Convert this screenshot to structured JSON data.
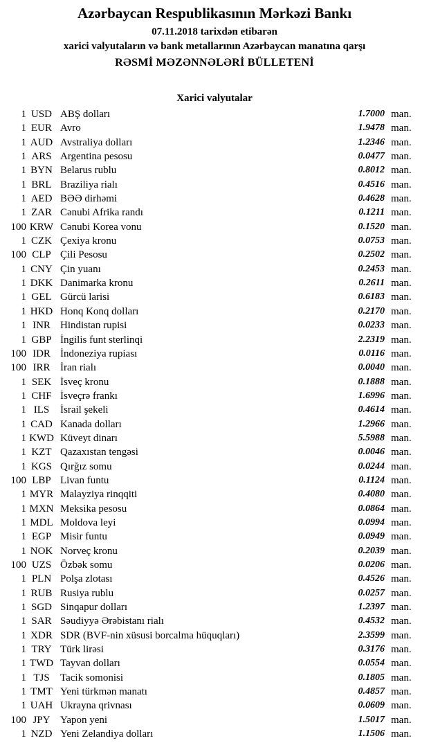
{
  "colors": {
    "text": "#000000",
    "background": "#ffffff"
  },
  "header": {
    "bank_name": "Azərbaycan Respublikasının Mərkəzi Bankı",
    "date_line": "07.11.2018 tarixdən etibarən",
    "subject_line": "xarici valyutaların və bank metallarının Azərbaycan manatına qarşı",
    "bulletin_title": "RƏSMİ MƏZƏNNƏLƏRİ BÜLLETENİ"
  },
  "section": {
    "title": "Xarici valyutalar"
  },
  "table": {
    "unit_label": "man.",
    "rows": [
      {
        "quantity": "1",
        "code": "USD",
        "name": "ABŞ dolları",
        "rate": "1.7000"
      },
      {
        "quantity": "1",
        "code": "EUR",
        "name": "Avro",
        "rate": "1.9478"
      },
      {
        "quantity": "1",
        "code": "AUD",
        "name": "Avstraliya dolları",
        "rate": "1.2346"
      },
      {
        "quantity": "1",
        "code": "ARS",
        "name": "Argentina pesosu",
        "rate": "0.0477"
      },
      {
        "quantity": "1",
        "code": "BYN",
        "name": "Belarus rublu",
        "rate": "0.8012"
      },
      {
        "quantity": "1",
        "code": "BRL",
        "name": "Braziliya rialı",
        "rate": "0.4516"
      },
      {
        "quantity": "1",
        "code": "AED",
        "name": "BƏƏ dirhəmi",
        "rate": "0.4628"
      },
      {
        "quantity": "1",
        "code": "ZAR",
        "name": "Cənubi Afrika randı",
        "rate": "0.1211"
      },
      {
        "quantity": "100",
        "code": "KRW",
        "name": "Cənubi Korea vonu",
        "rate": "0.1520"
      },
      {
        "quantity": "1",
        "code": "CZK",
        "name": "Çexiya kronu",
        "rate": "0.0753"
      },
      {
        "quantity": "100",
        "code": "CLP",
        "name": "Çili Pesosu",
        "rate": "0.2502"
      },
      {
        "quantity": "1",
        "code": "CNY",
        "name": "Çin yuanı",
        "rate": "0.2453"
      },
      {
        "quantity": "1",
        "code": "DKK",
        "name": "Danimarka kronu",
        "rate": "0.2611"
      },
      {
        "quantity": "1",
        "code": "GEL",
        "name": "Gürcü larisi",
        "rate": "0.6183"
      },
      {
        "quantity": "1",
        "code": "HKD",
        "name": "Honq Konq dolları",
        "rate": "0.2170"
      },
      {
        "quantity": "1",
        "code": "INR",
        "name": "Hindistan rupisi",
        "rate": "0.0233"
      },
      {
        "quantity": "1",
        "code": "GBP",
        "name": "İngilis funt sterlinqi",
        "rate": "2.2319"
      },
      {
        "quantity": "100",
        "code": "IDR",
        "name": "İndoneziya rupiası",
        "rate": "0.0116"
      },
      {
        "quantity": "100",
        "code": "IRR",
        "name": "İran rialı",
        "rate": "0.0040"
      },
      {
        "quantity": "1",
        "code": "SEK",
        "name": "İsveç kronu",
        "rate": "0.1888"
      },
      {
        "quantity": "1",
        "code": "CHF",
        "name": "İsveçrə frankı",
        "rate": "1.6996"
      },
      {
        "quantity": "1",
        "code": "ILS",
        "name": "İsrail şekeli",
        "rate": "0.4614"
      },
      {
        "quantity": "1",
        "code": "CAD",
        "name": "Kanada dolları",
        "rate": "1.2966"
      },
      {
        "quantity": "1",
        "code": "KWD",
        "name": "Küveyt dinarı",
        "rate": "5.5988"
      },
      {
        "quantity": "1",
        "code": "KZT",
        "name": "Qazaxıstan tengəsi",
        "rate": "0.0046"
      },
      {
        "quantity": "1",
        "code": "KGS",
        "name": "Qırğız somu",
        "rate": "0.0244"
      },
      {
        "quantity": "100",
        "code": "LBP",
        "name": "Livan funtu",
        "rate": "0.1124"
      },
      {
        "quantity": "1",
        "code": "MYR",
        "name": "Malayziya rinqqiti",
        "rate": "0.4080"
      },
      {
        "quantity": "1",
        "code": "MXN",
        "name": "Meksika pesosu",
        "rate": "0.0864"
      },
      {
        "quantity": "1",
        "code": "MDL",
        "name": "Moldova leyi",
        "rate": "0.0994"
      },
      {
        "quantity": "1",
        "code": "EGP",
        "name": "Misir funtu",
        "rate": "0.0949"
      },
      {
        "quantity": "1",
        "code": "NOK",
        "name": "Norveç kronu",
        "rate": "0.2039"
      },
      {
        "quantity": "100",
        "code": "UZS",
        "name": "Özbək somu",
        "rate": "0.0206"
      },
      {
        "quantity": "1",
        "code": "PLN",
        "name": "Polşa zlotası",
        "rate": "0.4526"
      },
      {
        "quantity": "1",
        "code": "RUB",
        "name": "Rusiya rublu",
        "rate": "0.0257"
      },
      {
        "quantity": "1",
        "code": "SGD",
        "name": "Sinqapur dolları",
        "rate": "1.2397"
      },
      {
        "quantity": "1",
        "code": "SAR",
        "name": "Səudiyyə Ərəbistanı rialı",
        "rate": "0.4532"
      },
      {
        "quantity": "1",
        "code": "XDR",
        "name": "SDR (BVF-nin xüsusi borcalma hüquqları)",
        "rate": "2.3599"
      },
      {
        "quantity": "1",
        "code": "TRY",
        "name": "Türk lirəsi",
        "rate": "0.3176"
      },
      {
        "quantity": "1",
        "code": "TWD",
        "name": "Tayvan dolları",
        "rate": "0.0554"
      },
      {
        "quantity": "1",
        "code": "TJS",
        "name": "Tacik somonisi",
        "rate": "0.1805"
      },
      {
        "quantity": "1",
        "code": "TMT",
        "name": "Yeni türkmən manatı",
        "rate": "0.4857"
      },
      {
        "quantity": "1",
        "code": "UAH",
        "name": "Ukrayna qrivnası",
        "rate": "0.0609"
      },
      {
        "quantity": "100",
        "code": "JPY",
        "name": "Yapon yeni",
        "rate": "1.5017"
      },
      {
        "quantity": "1",
        "code": "NZD",
        "name": "Yeni Zelandiya dolları",
        "rate": "1.1506"
      }
    ]
  }
}
